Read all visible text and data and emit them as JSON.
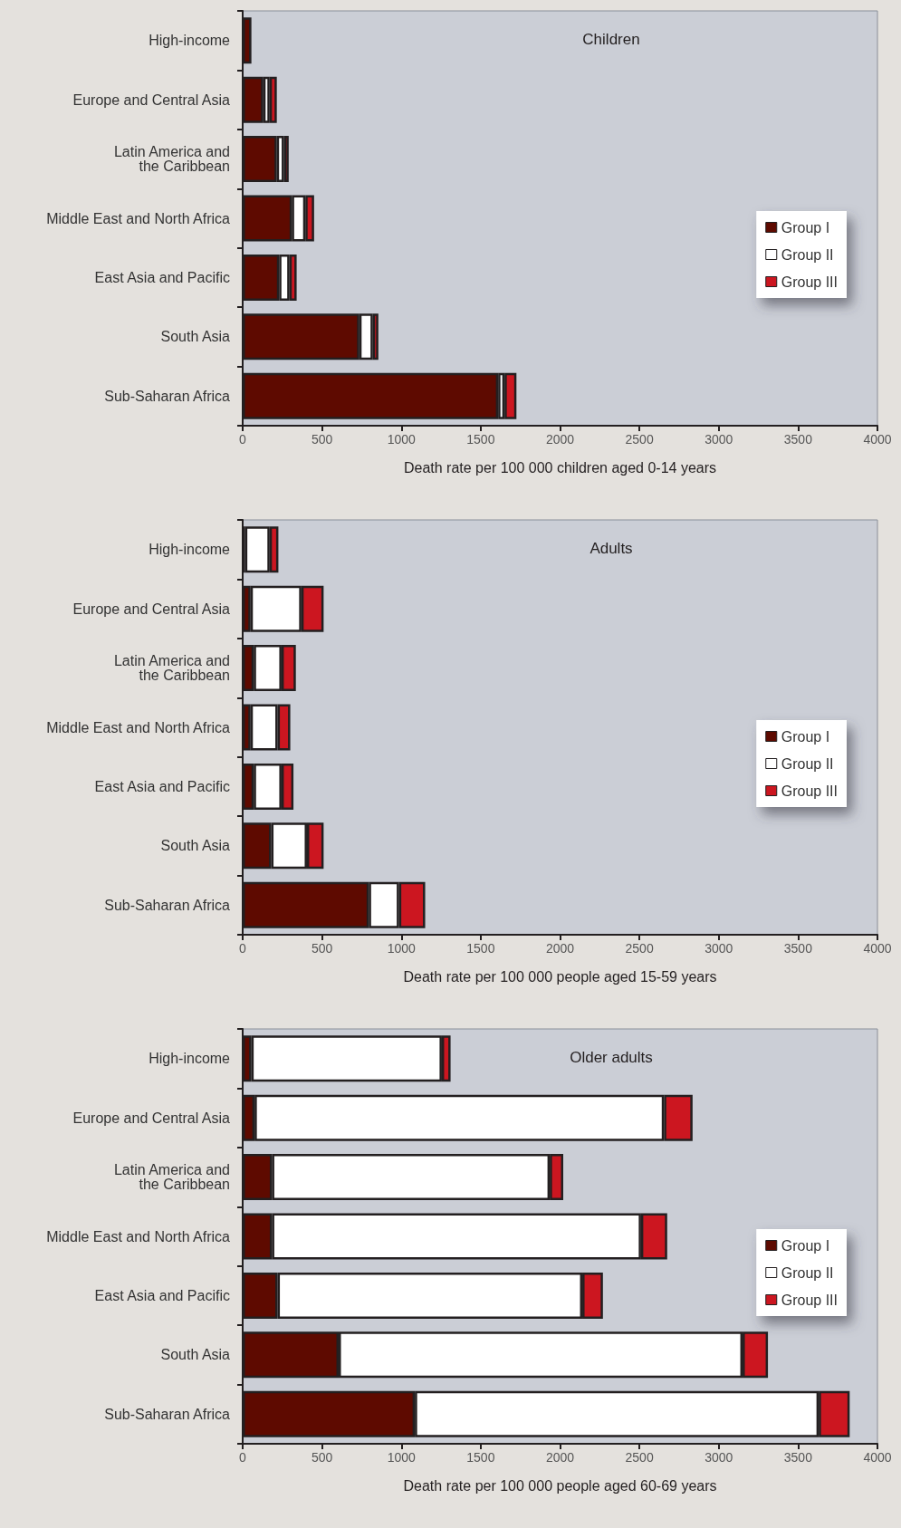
{
  "chart_data": [
    {
      "type": "bar",
      "title": "Children",
      "orientation": "horizontal",
      "stacked": true,
      "categories": [
        "High-income",
        "Europe and Central Asia",
        "Latin America and\nthe Caribbean",
        "Middle East and North Africa",
        "East Asia and Pacific",
        "South Asia",
        "Sub-Saharan Africa"
      ],
      "series": [
        {
          "name": "Group I",
          "color": "#5e0a00",
          "values": [
            55,
            130,
            215,
            310,
            230,
            735,
            1610
          ]
        },
        {
          "name": "Group II",
          "color": "#ffffff",
          "values": [
            null,
            40,
            45,
            85,
            65,
            85,
            40
          ]
        },
        {
          "name": "Group III",
          "color": "#cc1620",
          "values": [
            null,
            45,
            30,
            55,
            45,
            35,
            75
          ]
        }
      ],
      "xlim": [
        0,
        4000
      ],
      "xticks": [
        0,
        500,
        1000,
        1500,
        2000,
        2500,
        3000,
        3500,
        4000
      ],
      "xlabel": "Death rate per 100 000 children aged 0-14 years",
      "grid": false,
      "legend": "right"
    },
    {
      "type": "bar",
      "title": "Adults",
      "orientation": "horizontal",
      "stacked": true,
      "categories": [
        "High-income",
        "Europe and Central Asia",
        "Latin America and\nthe Caribbean",
        "Middle East and North Africa",
        "East Asia and Pacific",
        "South Asia",
        "Sub-Saharan Africa"
      ],
      "series": [
        {
          "name": "Group I",
          "color": "#5e0a00",
          "values": [
            15,
            50,
            70,
            50,
            70,
            180,
            795
          ]
        },
        {
          "name": "Group II",
          "color": "#ffffff",
          "values": [
            155,
            320,
            175,
            170,
            175,
            225,
            190
          ]
        },
        {
          "name": "Group III",
          "color": "#cc1620",
          "values": [
            55,
            140,
            90,
            80,
            75,
            105,
            165
          ]
        }
      ],
      "xlim": [
        0,
        4000
      ],
      "xticks": [
        0,
        500,
        1000,
        1500,
        2000,
        2500,
        3000,
        3500,
        4000
      ],
      "xlabel": "Death rate per 100 000 people aged 15-59 years",
      "grid": false,
      "legend": "right"
    },
    {
      "type": "bar",
      "title": "Older adults",
      "orientation": "horizontal",
      "stacked": true,
      "categories": [
        "High-income",
        "Europe and Central Asia",
        "Latin America and\nthe Caribbean",
        "Middle East and North Africa",
        "East Asia and Pacific",
        "South Asia",
        "Sub-Saharan Africa"
      ],
      "series": [
        {
          "name": "Group I",
          "color": "#5e0a00",
          "values": [
            55,
            75,
            185,
            185,
            220,
            605,
            1085
          ]
        },
        {
          "name": "Group II",
          "color": "#ffffff",
          "values": [
            1200,
            2580,
            1750,
            2325,
            1920,
            2545,
            2545
          ]
        },
        {
          "name": "Group III",
          "color": "#cc1620",
          "values": [
            55,
            180,
            85,
            165,
            130,
            160,
            195
          ]
        }
      ],
      "xlim": [
        0,
        4000
      ],
      "xticks": [
        0,
        500,
        1000,
        1500,
        2000,
        2500,
        3000,
        3500,
        4000
      ],
      "xlabel": "Death rate per 100 000 people aged 60-69 years",
      "grid": false,
      "legend": "right"
    }
  ]
}
